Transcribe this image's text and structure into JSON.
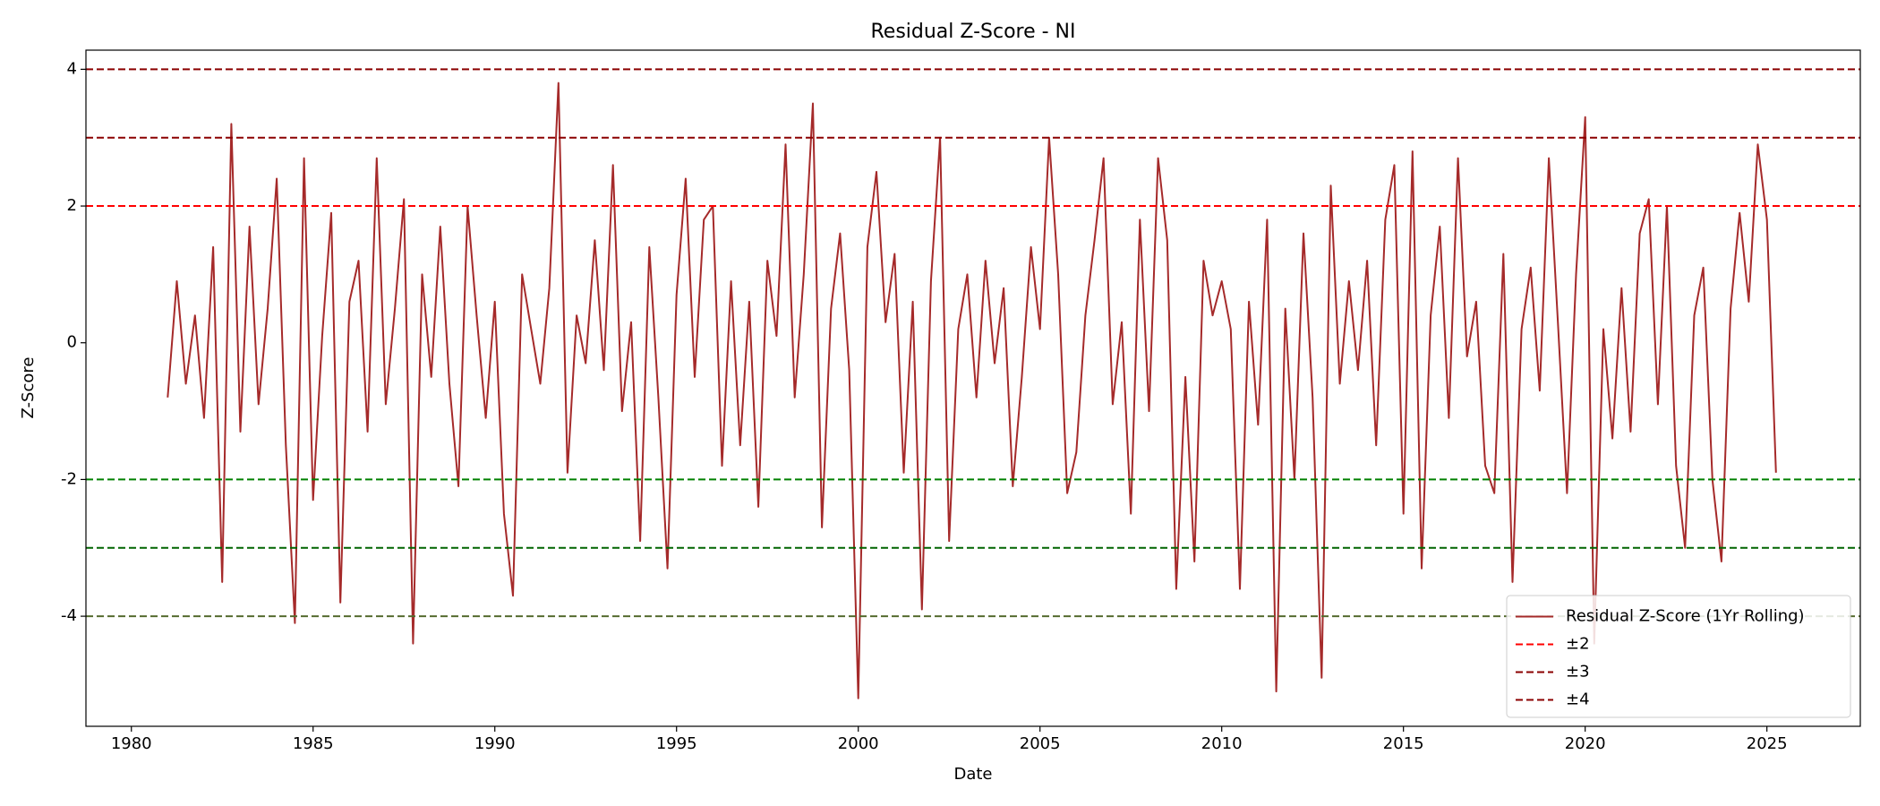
{
  "chart_data": {
    "type": "line",
    "title": "Residual Z-Score - NI",
    "x_label": "Date",
    "y_label": "Z-Score",
    "x": [
      1981,
      1981.25,
      1981.5,
      1981.75,
      1982,
      1982.25,
      1982.5,
      1982.75,
      1983,
      1983.25,
      1983.5,
      1983.75,
      1984,
      1984.25,
      1984.5,
      1984.75,
      1985,
      1985.25,
      1985.5,
      1985.75,
      1986,
      1986.25,
      1986.5,
      1986.75,
      1987,
      1987.25,
      1987.5,
      1987.75,
      1988,
      1988.25,
      1988.5,
      1988.75,
      1989,
      1989.25,
      1989.5,
      1989.75,
      1990,
      1990.25,
      1990.5,
      1990.75,
      1991,
      1991.25,
      1991.5,
      1991.75,
      1992,
      1992.25,
      1992.5,
      1992.75,
      1993,
      1993.25,
      1993.5,
      1993.75,
      1994,
      1994.25,
      1994.5,
      1994.75,
      1995,
      1995.25,
      1995.5,
      1995.75,
      1996,
      1996.25,
      1996.5,
      1996.75,
      1997,
      1997.25,
      1997.5,
      1997.75,
      1998,
      1998.25,
      1998.5,
      1998.75,
      1999,
      1999.25,
      1999.5,
      1999.75,
      2000,
      2000.25,
      2000.5,
      2000.75,
      2001,
      2001.25,
      2001.5,
      2001.75,
      2002,
      2002.25,
      2002.5,
      2002.75,
      2003,
      2003.25,
      2003.5,
      2003.75,
      2004,
      2004.25,
      2004.5,
      2004.75,
      2005,
      2005.25,
      2005.5,
      2005.75,
      2006,
      2006.25,
      2006.5,
      2006.75,
      2007,
      2007.25,
      2007.5,
      2007.75,
      2008,
      2008.25,
      2008.5,
      2008.75,
      2009,
      2009.25,
      2009.5,
      2009.75,
      2010,
      2010.25,
      2010.5,
      2010.75,
      2011,
      2011.25,
      2011.5,
      2011.75,
      2012,
      2012.25,
      2012.5,
      2012.75,
      2013,
      2013.25,
      2013.5,
      2013.75,
      2014,
      2014.25,
      2014.5,
      2014.75,
      2015,
      2015.25,
      2015.5,
      2015.75,
      2016,
      2016.25,
      2016.5,
      2016.75,
      2017,
      2017.25,
      2017.5,
      2017.75,
      2018,
      2018.25,
      2018.5,
      2018.75,
      2019,
      2019.25,
      2019.5,
      2019.75,
      2020,
      2020.25,
      2020.5,
      2020.75,
      2021,
      2021.25,
      2021.5,
      2021.75,
      2022,
      2022.25,
      2022.5,
      2022.75,
      2023,
      2023.25,
      2023.5,
      2023.75,
      2024,
      2024.25,
      2024.5,
      2024.75,
      2025,
      2025.25
    ],
    "series": [
      {
        "name": "Residual Z-Score (1Yr Rolling)",
        "color": "#a52a2a",
        "values": [
          -0.8,
          0.9,
          -0.6,
          0.4,
          -1.1,
          1.4,
          -3.5,
          3.2,
          -1.3,
          1.7,
          -0.9,
          0.5,
          2.4,
          -1.5,
          -4.1,
          2.7,
          -2.3,
          0.1,
          1.9,
          -3.8,
          0.6,
          1.2,
          -1.3,
          2.7,
          -0.9,
          0.5,
          2.1,
          -4.4,
          1.0,
          -0.5,
          1.7,
          -0.6,
          -2.1,
          2.0,
          0.4,
          -1.1,
          0.6,
          -2.5,
          -3.7,
          1.0,
          0.2,
          -0.6,
          0.8,
          3.8,
          -1.9,
          0.4,
          -0.3,
          1.5,
          -0.4,
          2.6,
          -1.0,
          0.3,
          -2.9,
          1.4,
          -0.8,
          -3.3,
          0.7,
          2.4,
          -0.5,
          1.8,
          2.0,
          -1.8,
          0.9,
          -1.5,
          0.6,
          -2.4,
          1.2,
          0.1,
          2.9,
          -0.8,
          1.0,
          3.5,
          -2.7,
          0.5,
          1.6,
          -0.4,
          -5.2,
          1.4,
          2.5,
          0.3,
          1.3,
          -1.9,
          0.6,
          -3.9,
          0.9,
          3.0,
          -2.9,
          0.2,
          1.0,
          -0.8,
          1.2,
          -0.3,
          0.8,
          -2.1,
          -0.5,
          1.4,
          0.2,
          3.0,
          1.0,
          -2.2,
          -1.6,
          0.4,
          1.5,
          2.7,
          -0.9,
          0.3,
          -2.5,
          1.8,
          -1.0,
          2.7,
          1.5,
          -3.6,
          -0.5,
          -3.2,
          1.2,
          0.4,
          0.9,
          0.2,
          -3.6,
          0.6,
          -1.2,
          1.8,
          -5.1,
          0.5,
          -2.0,
          1.6,
          -0.8,
          -4.9,
          2.3,
          -0.6,
          0.9,
          -0.4,
          1.2,
          -1.5,
          1.8,
          2.6,
          -2.5,
          2.8,
          -3.3,
          0.4,
          1.7,
          -1.1,
          2.7,
          -0.2,
          0.6,
          -1.8,
          -2.2,
          1.3,
          -3.5,
          0.2,
          1.1,
          -0.7,
          2.7,
          0.3,
          -2.2,
          1.0,
          3.3,
          -4.4,
          0.2,
          -1.4,
          0.8,
          -1.3,
          1.6,
          2.1,
          -0.9,
          2.0,
          -1.8,
          -3.0,
          0.4,
          1.1,
          -2.0,
          -3.2,
          0.5,
          1.9,
          0.6,
          2.9,
          1.8,
          -1.9
        ]
      }
    ],
    "hlines": [
      {
        "name": "±2",
        "values": [
          2,
          -2
        ],
        "colors": [
          "#ff0000",
          "#008000"
        ]
      },
      {
        "name": "±3",
        "values": [
          3,
          -3
        ],
        "colors": [
          "#8b0000",
          "#006400"
        ]
      },
      {
        "name": "±4",
        "values": [
          4,
          -4
        ],
        "colors": [
          "#8b0000",
          "#556b2f"
        ]
      }
    ],
    "xlim": [
      1978.75,
      2027.57
    ],
    "xticks": [
      1980,
      1985,
      1990,
      1995,
      2000,
      2005,
      2010,
      2015,
      2020,
      2025
    ],
    "ylim": [
      -5.61,
      4.28
    ],
    "yticks": [
      -4,
      -2,
      0,
      2,
      4
    ],
    "legend": "lower right"
  }
}
